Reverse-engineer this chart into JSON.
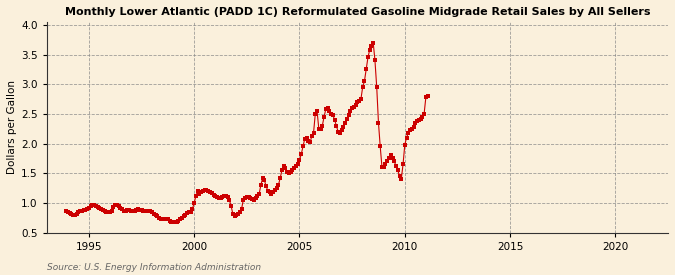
{
  "title": "Monthly Lower Atlantic (PADD 1C) Reformulated Gasoline Midgrade Retail Sales by All Sellers",
  "ylabel": "Dollars per Gallon",
  "source": "Source: U.S. Energy Information Administration",
  "xlim": [
    1993.0,
    2022.5
  ],
  "ylim": [
    0.5,
    4.05
  ],
  "yticks": [
    0.5,
    1.0,
    1.5,
    2.0,
    2.5,
    3.0,
    3.5,
    4.0
  ],
  "xticks": [
    1995,
    2000,
    2005,
    2010,
    2015,
    2020
  ],
  "marker_color": "#CC0000",
  "line_color": "#CC0000",
  "background_color": "#FAF0DC",
  "data": [
    [
      1993.917,
      0.86
    ],
    [
      1994.0,
      0.84
    ],
    [
      1994.083,
      0.83
    ],
    [
      1994.167,
      0.82
    ],
    [
      1994.25,
      0.8
    ],
    [
      1994.333,
      0.8
    ],
    [
      1994.417,
      0.82
    ],
    [
      1994.5,
      0.85
    ],
    [
      1994.583,
      0.86
    ],
    [
      1994.667,
      0.87
    ],
    [
      1994.75,
      0.88
    ],
    [
      1994.833,
      0.88
    ],
    [
      1994.917,
      0.89
    ],
    [
      1995.0,
      0.92
    ],
    [
      1995.083,
      0.94
    ],
    [
      1995.167,
      0.96
    ],
    [
      1995.25,
      0.97
    ],
    [
      1995.333,
      0.95
    ],
    [
      1995.417,
      0.93
    ],
    [
      1995.5,
      0.92
    ],
    [
      1995.583,
      0.9
    ],
    [
      1995.667,
      0.88
    ],
    [
      1995.75,
      0.86
    ],
    [
      1995.833,
      0.85
    ],
    [
      1995.917,
      0.84
    ],
    [
      1996.0,
      0.85
    ],
    [
      1996.083,
      0.87
    ],
    [
      1996.167,
      0.93
    ],
    [
      1996.25,
      0.97
    ],
    [
      1996.333,
      0.97
    ],
    [
      1996.417,
      0.95
    ],
    [
      1996.5,
      0.92
    ],
    [
      1996.583,
      0.9
    ],
    [
      1996.667,
      0.87
    ],
    [
      1996.75,
      0.87
    ],
    [
      1996.833,
      0.88
    ],
    [
      1996.917,
      0.88
    ],
    [
      1997.0,
      0.87
    ],
    [
      1997.083,
      0.86
    ],
    [
      1997.167,
      0.87
    ],
    [
      1997.25,
      0.88
    ],
    [
      1997.333,
      0.89
    ],
    [
      1997.417,
      0.88
    ],
    [
      1997.5,
      0.88
    ],
    [
      1997.583,
      0.87
    ],
    [
      1997.667,
      0.86
    ],
    [
      1997.75,
      0.86
    ],
    [
      1997.833,
      0.86
    ],
    [
      1997.917,
      0.86
    ],
    [
      1998.0,
      0.85
    ],
    [
      1998.083,
      0.82
    ],
    [
      1998.167,
      0.8
    ],
    [
      1998.25,
      0.78
    ],
    [
      1998.333,
      0.75
    ],
    [
      1998.417,
      0.73
    ],
    [
      1998.5,
      0.72
    ],
    [
      1998.583,
      0.72
    ],
    [
      1998.667,
      0.72
    ],
    [
      1998.75,
      0.72
    ],
    [
      1998.833,
      0.7
    ],
    [
      1998.917,
      0.68
    ],
    [
      1999.0,
      0.67
    ],
    [
      1999.083,
      0.67
    ],
    [
      1999.167,
      0.68
    ],
    [
      1999.25,
      0.7
    ],
    [
      1999.333,
      0.72
    ],
    [
      1999.417,
      0.75
    ],
    [
      1999.5,
      0.78
    ],
    [
      1999.583,
      0.8
    ],
    [
      1999.667,
      0.83
    ],
    [
      1999.75,
      0.84
    ],
    [
      1999.833,
      0.85
    ],
    [
      1999.917,
      0.9
    ],
    [
      2000.0,
      1.0
    ],
    [
      2000.083,
      1.12
    ],
    [
      2000.167,
      1.2
    ],
    [
      2000.25,
      1.15
    ],
    [
      2000.333,
      1.18
    ],
    [
      2000.417,
      1.2
    ],
    [
      2000.5,
      1.22
    ],
    [
      2000.583,
      1.22
    ],
    [
      2000.667,
      1.2
    ],
    [
      2000.75,
      1.18
    ],
    [
      2000.833,
      1.16
    ],
    [
      2000.917,
      1.14
    ],
    [
      2001.0,
      1.12
    ],
    [
      2001.083,
      1.1
    ],
    [
      2001.167,
      1.08
    ],
    [
      2001.25,
      1.08
    ],
    [
      2001.333,
      1.1
    ],
    [
      2001.417,
      1.12
    ],
    [
      2001.5,
      1.12
    ],
    [
      2001.583,
      1.1
    ],
    [
      2001.667,
      1.05
    ],
    [
      2001.75,
      0.95
    ],
    [
      2001.833,
      0.82
    ],
    [
      2001.917,
      0.78
    ],
    [
      2002.0,
      0.8
    ],
    [
      2002.083,
      0.82
    ],
    [
      2002.167,
      0.85
    ],
    [
      2002.25,
      0.9
    ],
    [
      2002.333,
      1.05
    ],
    [
      2002.417,
      1.08
    ],
    [
      2002.5,
      1.1
    ],
    [
      2002.583,
      1.1
    ],
    [
      2002.667,
      1.08
    ],
    [
      2002.75,
      1.06
    ],
    [
      2002.833,
      1.05
    ],
    [
      2002.917,
      1.08
    ],
    [
      2003.0,
      1.12
    ],
    [
      2003.083,
      1.15
    ],
    [
      2003.167,
      1.3
    ],
    [
      2003.25,
      1.42
    ],
    [
      2003.333,
      1.38
    ],
    [
      2003.417,
      1.28
    ],
    [
      2003.5,
      1.2
    ],
    [
      2003.583,
      1.18
    ],
    [
      2003.667,
      1.15
    ],
    [
      2003.75,
      1.18
    ],
    [
      2003.833,
      1.22
    ],
    [
      2003.917,
      1.25
    ],
    [
      2004.0,
      1.3
    ],
    [
      2004.083,
      1.42
    ],
    [
      2004.167,
      1.55
    ],
    [
      2004.25,
      1.62
    ],
    [
      2004.333,
      1.58
    ],
    [
      2004.417,
      1.52
    ],
    [
      2004.5,
      1.5
    ],
    [
      2004.583,
      1.52
    ],
    [
      2004.667,
      1.55
    ],
    [
      2004.75,
      1.58
    ],
    [
      2004.833,
      1.62
    ],
    [
      2004.917,
      1.65
    ],
    [
      2005.0,
      1.72
    ],
    [
      2005.083,
      1.82
    ],
    [
      2005.167,
      1.95
    ],
    [
      2005.25,
      2.08
    ],
    [
      2005.333,
      2.1
    ],
    [
      2005.417,
      2.05
    ],
    [
      2005.5,
      2.02
    ],
    [
      2005.583,
      2.12
    ],
    [
      2005.667,
      2.18
    ],
    [
      2005.75,
      2.5
    ],
    [
      2005.833,
      2.55
    ],
    [
      2005.917,
      2.25
    ],
    [
      2006.0,
      2.25
    ],
    [
      2006.083,
      2.3
    ],
    [
      2006.167,
      2.45
    ],
    [
      2006.25,
      2.58
    ],
    [
      2006.333,
      2.6
    ],
    [
      2006.417,
      2.55
    ],
    [
      2006.5,
      2.5
    ],
    [
      2006.583,
      2.48
    ],
    [
      2006.667,
      2.4
    ],
    [
      2006.75,
      2.3
    ],
    [
      2006.833,
      2.2
    ],
    [
      2006.917,
      2.18
    ],
    [
      2007.0,
      2.22
    ],
    [
      2007.083,
      2.28
    ],
    [
      2007.167,
      2.35
    ],
    [
      2007.25,
      2.42
    ],
    [
      2007.333,
      2.48
    ],
    [
      2007.417,
      2.55
    ],
    [
      2007.5,
      2.6
    ],
    [
      2007.583,
      2.62
    ],
    [
      2007.667,
      2.65
    ],
    [
      2007.75,
      2.7
    ],
    [
      2007.833,
      2.72
    ],
    [
      2007.917,
      2.75
    ],
    [
      2008.0,
      2.95
    ],
    [
      2008.083,
      3.05
    ],
    [
      2008.167,
      3.25
    ],
    [
      2008.25,
      3.45
    ],
    [
      2008.333,
      3.58
    ],
    [
      2008.417,
      3.65
    ],
    [
      2008.5,
      3.7
    ],
    [
      2008.583,
      3.4
    ],
    [
      2008.667,
      2.95
    ],
    [
      2008.75,
      2.35
    ],
    [
      2008.833,
      1.95
    ],
    [
      2008.917,
      1.6
    ],
    [
      2009.0,
      1.6
    ],
    [
      2009.083,
      1.65
    ],
    [
      2009.167,
      1.7
    ],
    [
      2009.25,
      1.75
    ],
    [
      2009.333,
      1.8
    ],
    [
      2009.417,
      1.75
    ],
    [
      2009.5,
      1.7
    ],
    [
      2009.583,
      1.62
    ],
    [
      2009.667,
      1.55
    ],
    [
      2009.75,
      1.45
    ],
    [
      2009.833,
      1.4
    ],
    [
      2009.917,
      1.65
    ],
    [
      2010.0,
      1.98
    ],
    [
      2010.083,
      2.1
    ],
    [
      2010.167,
      2.18
    ],
    [
      2010.25,
      2.22
    ],
    [
      2010.333,
      2.25
    ],
    [
      2010.417,
      2.28
    ],
    [
      2010.5,
      2.35
    ],
    [
      2010.583,
      2.38
    ],
    [
      2010.667,
      2.4
    ],
    [
      2010.75,
      2.42
    ],
    [
      2010.833,
      2.45
    ],
    [
      2010.917,
      2.5
    ],
    [
      2011.0,
      2.78
    ],
    [
      2011.083,
      2.8
    ]
  ]
}
